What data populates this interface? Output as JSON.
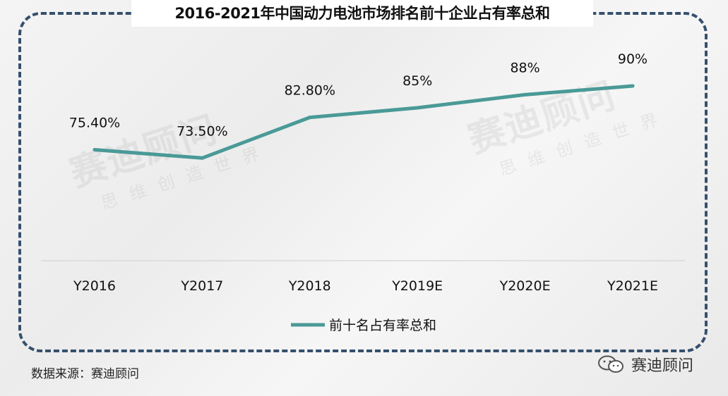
{
  "title": "2016-2021年中国动力电池市场排名前十企业占有率总和",
  "source": "数据来源：赛迪顾问",
  "brand": "赛迪顾问",
  "watermark": {
    "main": "赛迪顾问",
    "sub": "思维创造世界"
  },
  "colors": {
    "line": "#4a9a97",
    "axis": "#d9d9d9",
    "frame": "#35506d"
  },
  "chart_data": {
    "type": "line",
    "title": "2016-2021年中国动力电池市场排名前十企业占有率总和",
    "categories": [
      "Y2016",
      "Y2017",
      "Y2018",
      "Y2019E",
      "Y2020E",
      "Y2021E"
    ],
    "series": [
      {
        "name": "前十名占有率总和",
        "values": [
          75.4,
          73.5,
          82.8,
          85,
          88,
          90
        ],
        "labels": [
          "75.40%",
          "73.50%",
          "82.80%",
          "85%",
          "88%",
          "90%"
        ]
      }
    ],
    "ylim": [
      50,
      100
    ],
    "grid": false,
    "legend": "bottom"
  }
}
